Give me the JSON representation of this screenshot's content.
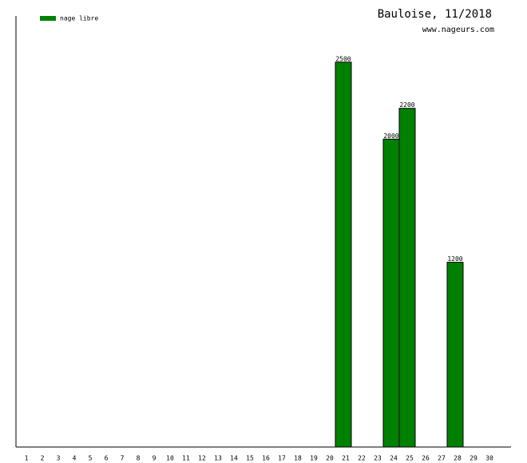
{
  "chart_data": {
    "type": "bar",
    "title": "Bauloise, 11/2018",
    "subtitle": "www.nageurs.com",
    "categories": [
      "1",
      "2",
      "3",
      "4",
      "5",
      "6",
      "7",
      "8",
      "9",
      "10",
      "11",
      "12",
      "13",
      "14",
      "15",
      "16",
      "17",
      "18",
      "19",
      "20",
      "21",
      "22",
      "23",
      "24",
      "25",
      "26",
      "27",
      "28",
      "29",
      "30"
    ],
    "series": [
      {
        "name": "nage libre",
        "color": "#008000",
        "values": [
          null,
          null,
          null,
          null,
          null,
          null,
          null,
          null,
          null,
          null,
          null,
          null,
          null,
          null,
          null,
          null,
          null,
          null,
          null,
          null,
          2500,
          null,
          null,
          2000,
          2200,
          null,
          null,
          1200,
          null,
          null
        ]
      }
    ],
    "ylim": [
      0,
      2800
    ],
    "legend": "top-left"
  }
}
